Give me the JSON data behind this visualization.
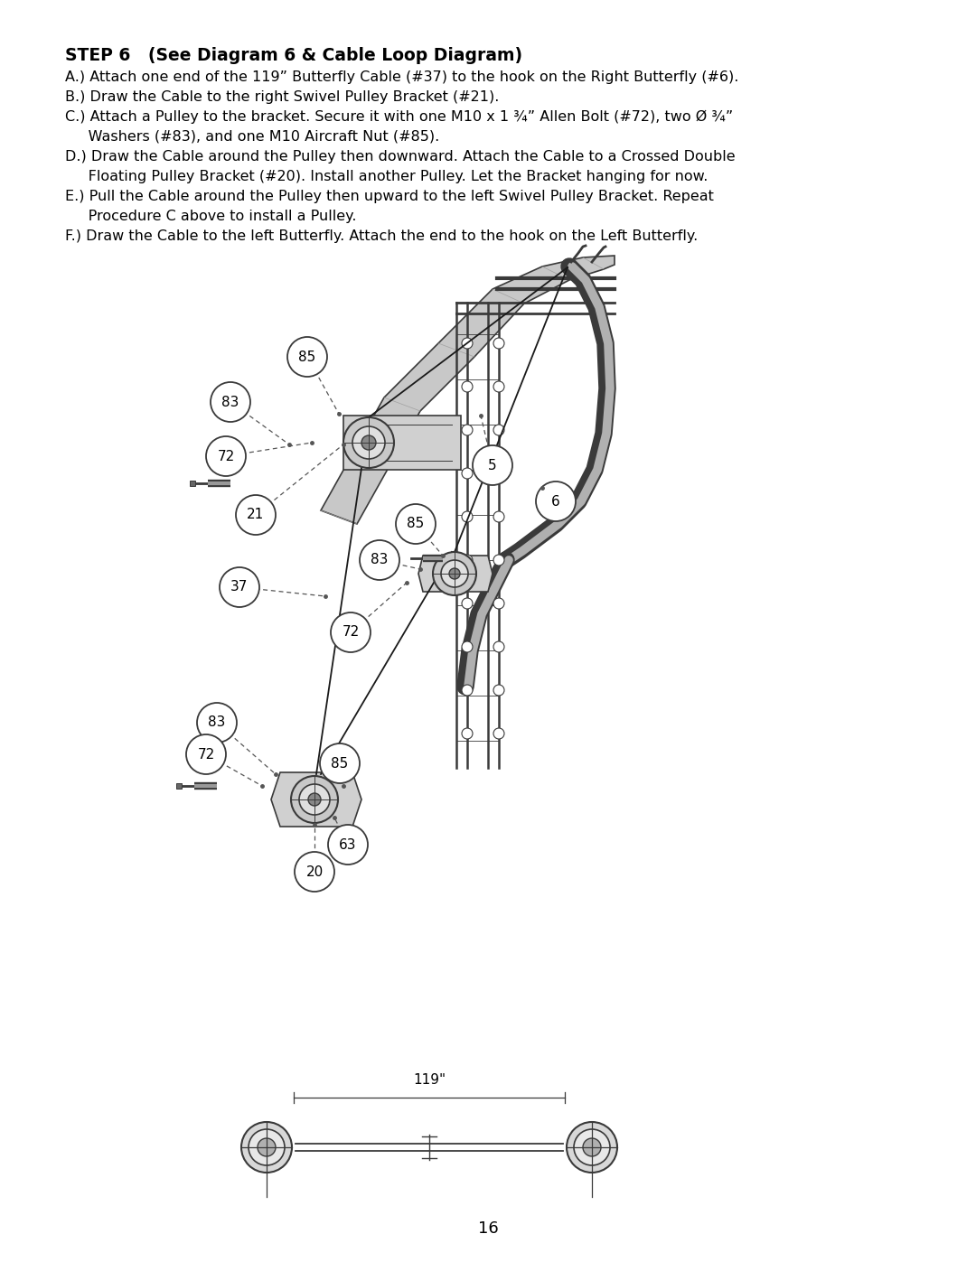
{
  "title": "STEP 6   (See Diagram 6 & Cable Loop Diagram)",
  "line1": "A.) Attach one end of the 119” Butterfly Cable (#37) to the hook on the Right Butterfly (#6).",
  "line2": "B.) Draw the Cable to the right Swivel Pulley Bracket (#21).",
  "line3": "C.) Attach a Pulley to the bracket. Secure it with one M10 x 1 ¾” Allen Bolt (#72), two Ø ¾”",
  "line3b": "     Washers (#83), and one M10 Aircraft Nut (#85).",
  "line4": "D.) Draw the Cable around the Pulley then downward. Attach the Cable to a Crossed Double",
  "line4b": "     Floating Pulley Bracket (#20). Install another Pulley. Let the Bracket hanging for now.",
  "line5": "E.) Pull the Cable around the Pulley then upward to the left Swivel Pulley Bracket. Repeat",
  "line5b": "     Procedure C above to install a Pulley.",
  "line6": "F.) Draw the Cable to the left Butterfly. Attach the end to the hook on the Left Butterfly.",
  "page_number": "16",
  "bg": "#ffffff",
  "fg": "#000000"
}
